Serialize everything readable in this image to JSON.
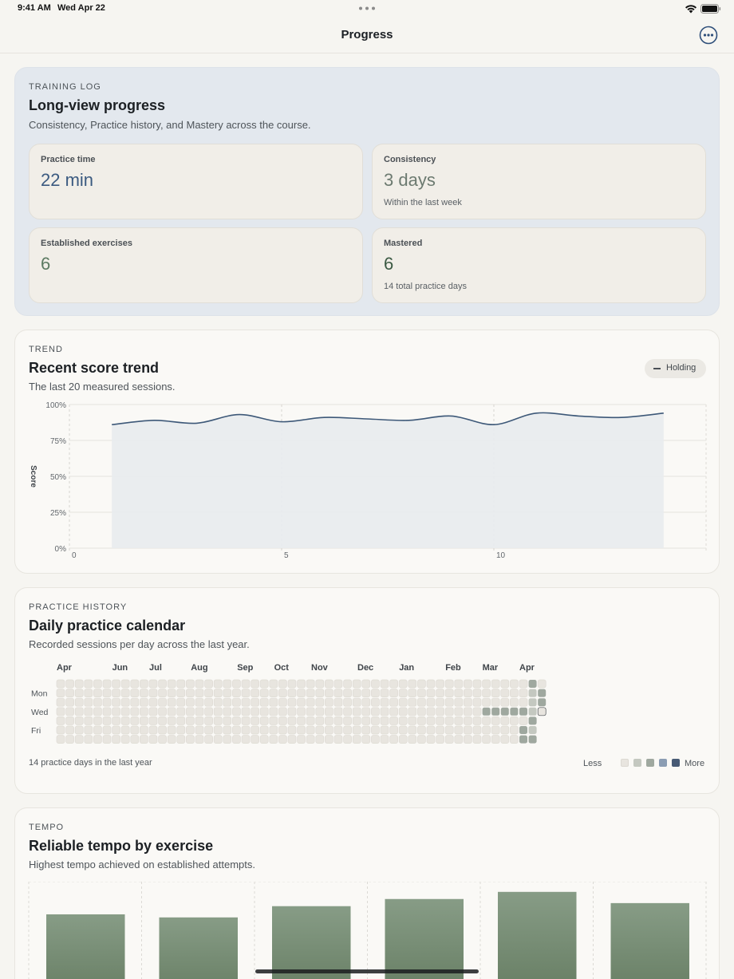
{
  "status_bar": {
    "time": "9:41 AM",
    "date": "Wed Apr 22"
  },
  "nav": {
    "title": "Progress",
    "more_icon": "ellipsis-circle-icon"
  },
  "training_log": {
    "eyebrow": "TRAINING LOG",
    "title": "Long-view progress",
    "subtitle": "Consistency, Practice history, and Mastery across the course.",
    "stats": [
      {
        "label": "Practice time",
        "value": "22 min",
        "note": "",
        "color": "#3b5a80"
      },
      {
        "label": "Consistency",
        "value": "3 days",
        "note": "Within the last week",
        "color": "#6c7a70"
      },
      {
        "label": "Established exercises",
        "value": "6",
        "note": "",
        "color": "#5c7a62"
      },
      {
        "label": "Mastered",
        "value": "6",
        "note": "14 total practice days",
        "color": "#3c5a44"
      }
    ]
  },
  "trend": {
    "eyebrow": "TREND",
    "title": "Recent score trend",
    "subtitle": "The last 20 measured sessions.",
    "badge": "Holding",
    "chart_data": {
      "type": "area",
      "ylabel": "Score",
      "ylim": [
        0,
        100
      ],
      "y_ticks": [
        "100%",
        "75%",
        "50%",
        "25%",
        "0%"
      ],
      "x_ticks": [
        "0",
        "5",
        "10"
      ],
      "xlim": [
        0,
        15
      ],
      "x": [
        1,
        2,
        3,
        4,
        5,
        6,
        7,
        8,
        9,
        10,
        11,
        12,
        13,
        14
      ],
      "values": [
        86,
        89,
        87,
        93,
        88,
        91,
        90,
        89,
        92,
        86,
        94,
        92,
        91,
        94
      ],
      "line_color": "#3d5878",
      "fill_color": "#e8ebee"
    }
  },
  "history": {
    "eyebrow": "PRACTICE HISTORY",
    "title": "Daily practice calendar",
    "subtitle": "Recorded sessions per day across the last year.",
    "months": [
      "Apr",
      "Jun",
      "Jul",
      "Aug",
      "Sep",
      "Oct",
      "Nov",
      "Dec",
      "Jan",
      "Feb",
      "Mar",
      "Apr"
    ],
    "day_labels": [
      "Mon",
      "Wed",
      "Fri"
    ],
    "footer": "14 practice days in the last year",
    "legend_less": "Less",
    "legend_more": "More",
    "level_colors": [
      "#e8e5df",
      "#c4c8c0",
      "#9fa89f",
      "#8b9db3",
      "#485b75"
    ]
  },
  "tempo": {
    "eyebrow": "TEMPO",
    "title": "Reliable tempo by exercise",
    "subtitle": "Highest tempo achieved on established attempts.",
    "bar_values": [
      93,
      90,
      101,
      108,
      115,
      104
    ],
    "bar_color_top": "#879c86",
    "bar_color_bottom": "#62795e"
  }
}
